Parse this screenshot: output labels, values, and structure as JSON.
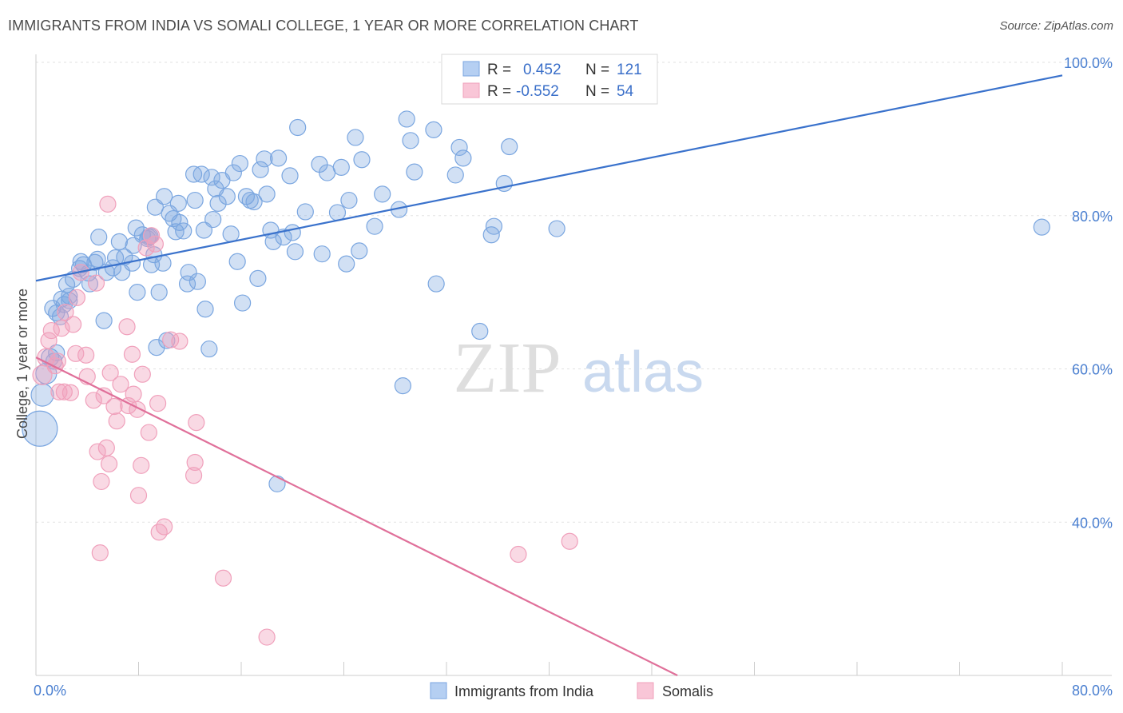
{
  "title": "IMMIGRANTS FROM INDIA VS SOMALI COLLEGE, 1 YEAR OR MORE CORRELATION CHART",
  "source": "Source: ZipAtlas.com",
  "watermark": {
    "zip": "ZIP",
    "atlas": "atlas"
  },
  "legend_box": {
    "rows": [
      {
        "r_label": "R =",
        "r_value": "0.452",
        "n_label": "N =",
        "n_value": "121"
      },
      {
        "r_label": "R =",
        "r_value": "-0.552",
        "n_label": "N =",
        "n_value": "54"
      }
    ]
  },
  "chart_data": {
    "type": "scatter",
    "xlabel": "",
    "ylabel": "College, 1 year or more",
    "xlim": [
      0,
      80
    ],
    "ylim": [
      20,
      100
    ],
    "x_tick_labels": [
      {
        "v": 0,
        "t": "0.0%"
      },
      {
        "v": 80,
        "t": "80.0%"
      }
    ],
    "y_tick_labels": [
      {
        "v": 100,
        "t": "100.0%"
      },
      {
        "v": 80,
        "t": "80.0%"
      },
      {
        "v": 60,
        "t": "60.0%"
      },
      {
        "v": 40,
        "t": "40.0%"
      }
    ],
    "grid": true,
    "legend_position": "bottom",
    "series": [
      {
        "name": "Immigrants from India",
        "color": "#7aa6e0",
        "line_color": "#3a72cc",
        "trend": {
          "x1": 0,
          "y1": 71.5,
          "x2": 80,
          "y2": 98.3
        },
        "points": [
          [
            0.3,
            52.2,
            22
          ],
          [
            0.5,
            56.6,
            14
          ],
          [
            0.8,
            59.4,
            13
          ],
          [
            1.1,
            61.5,
            11
          ],
          [
            1.4,
            61,
            10
          ],
          [
            1.6,
            62.1,
            10
          ],
          [
            1.3,
            67.9,
            10
          ],
          [
            1.6,
            67.3,
            10
          ],
          [
            2.0,
            69.1,
            10
          ],
          [
            2.2,
            68.4,
            10
          ],
          [
            2.6,
            69.5,
            10
          ],
          [
            2.9,
            71.7,
            10
          ],
          [
            2.4,
            71.0,
            10
          ],
          [
            3.4,
            73.1,
            10
          ],
          [
            3.5,
            74.0,
            10
          ],
          [
            3.7,
            73.6,
            10
          ],
          [
            4.2,
            71.1,
            10
          ],
          [
            4.6,
            73.9,
            10
          ],
          [
            4.8,
            74.3,
            10
          ],
          [
            4.9,
            77.2,
            10
          ],
          [
            5.3,
            66.3,
            10
          ],
          [
            5.5,
            72.6,
            10
          ],
          [
            6.0,
            73.2,
            10
          ],
          [
            6.2,
            74.5,
            10
          ],
          [
            6.5,
            76.6,
            10
          ],
          [
            6.7,
            72.6,
            10
          ],
          [
            6.9,
            74.6,
            10
          ],
          [
            7.5,
            73.8,
            10
          ],
          [
            7.6,
            76.1,
            10
          ],
          [
            7.8,
            78.4,
            10
          ],
          [
            7.9,
            70.0,
            10
          ],
          [
            8.3,
            77.5,
            10
          ],
          [
            8.7,
            77.0,
            10
          ],
          [
            8.9,
            77.3,
            10
          ],
          [
            8.8,
            77.2,
            10
          ],
          [
            9.0,
            73.6,
            10
          ],
          [
            9.3,
            81.1,
            10
          ],
          [
            9.4,
            62.8,
            10
          ],
          [
            9.6,
            70.0,
            10
          ],
          [
            9.9,
            73.8,
            10
          ],
          [
            10.0,
            82.5,
            10
          ],
          [
            10.2,
            63.7,
            10
          ],
          [
            10.4,
            80.3,
            10
          ],
          [
            10.7,
            79.6,
            10
          ],
          [
            10.9,
            77.9,
            10
          ],
          [
            11.1,
            81.6,
            10
          ],
          [
            11.2,
            79.1,
            10
          ],
          [
            11.5,
            78.0,
            10
          ],
          [
            11.8,
            71.1,
            10
          ],
          [
            11.9,
            72.6,
            10
          ],
          [
            12.3,
            85.4,
            10
          ],
          [
            12.4,
            82.0,
            10
          ],
          [
            12.6,
            71.4,
            10
          ],
          [
            12.9,
            85.4,
            10
          ],
          [
            13.1,
            78.1,
            10
          ],
          [
            13.2,
            67.8,
            10
          ],
          [
            13.5,
            62.6,
            10
          ],
          [
            13.7,
            85.0,
            10
          ],
          [
            13.8,
            79.5,
            10
          ],
          [
            14.0,
            83.5,
            10
          ],
          [
            14.2,
            81.6,
            10
          ],
          [
            14.5,
            84.6,
            10
          ],
          [
            14.9,
            82.5,
            10
          ],
          [
            15.2,
            77.6,
            10
          ],
          [
            15.4,
            85.6,
            10
          ],
          [
            15.7,
            74.0,
            10
          ],
          [
            15.9,
            86.8,
            10
          ],
          [
            16.1,
            68.6,
            10
          ],
          [
            16.4,
            82.5,
            10
          ],
          [
            16.7,
            82.0,
            10
          ],
          [
            17.0,
            81.8,
            10
          ],
          [
            17.3,
            71.8,
            10
          ],
          [
            17.5,
            86.0,
            10
          ],
          [
            17.8,
            87.4,
            10
          ],
          [
            18.0,
            82.8,
            10
          ],
          [
            18.3,
            78.1,
            10
          ],
          [
            18.5,
            76.6,
            10
          ],
          [
            18.9,
            87.5,
            10
          ],
          [
            19.3,
            77.2,
            10
          ],
          [
            19.8,
            85.2,
            10
          ],
          [
            20.0,
            77.8,
            10
          ],
          [
            20.2,
            75.3,
            10
          ],
          [
            20.4,
            91.5,
            10
          ],
          [
            21.0,
            80.5,
            10
          ],
          [
            22.1,
            86.7,
            10
          ],
          [
            22.3,
            75.0,
            10
          ],
          [
            22.7,
            85.6,
            10
          ],
          [
            23.5,
            80.4,
            10
          ],
          [
            23.8,
            86.3,
            10
          ],
          [
            24.2,
            73.7,
            10
          ],
          [
            24.4,
            82.0,
            10
          ],
          [
            24.9,
            90.2,
            10
          ],
          [
            25.2,
            75.4,
            10
          ],
          [
            25.4,
            87.3,
            10
          ],
          [
            26.4,
            78.6,
            10
          ],
          [
            27.0,
            82.8,
            10
          ],
          [
            28.3,
            80.8,
            10
          ],
          [
            28.9,
            92.6,
            10
          ],
          [
            29.2,
            89.8,
            10
          ],
          [
            29.5,
            85.7,
            10
          ],
          [
            31.0,
            91.2,
            10
          ],
          [
            31.2,
            71.1,
            10
          ],
          [
            33.0,
            88.9,
            10
          ],
          [
            33.3,
            87.5,
            10
          ],
          [
            32.7,
            85.3,
            10
          ],
          [
            34.6,
            64.9,
            10
          ],
          [
            35.5,
            77.5,
            10
          ],
          [
            35.7,
            78.6,
            10
          ],
          [
            36.5,
            84.2,
            10
          ],
          [
            36.9,
            89.0,
            10
          ],
          [
            40.6,
            78.3,
            10
          ],
          [
            78.4,
            78.5,
            10
          ],
          [
            28.6,
            57.8,
            10
          ],
          [
            18.8,
            45.0,
            10
          ],
          [
            2.6,
            68.9,
            10
          ],
          [
            1.9,
            66.8,
            10
          ],
          [
            4.1,
            72.5,
            10
          ],
          [
            9.2,
            74.9,
            10
          ]
        ]
      },
      {
        "name": "Somalis",
        "color": "#f0a0bb",
        "line_color": "#e0709a",
        "trend": {
          "x1": 0,
          "y1": 61.5,
          "x2": 50.0,
          "y2": 20.0
        },
        "points": [
          [
            0.5,
            59.2,
            12
          ],
          [
            0.8,
            61.5,
            11
          ],
          [
            1.0,
            63.7,
            10
          ],
          [
            1.2,
            65.0,
            10
          ],
          [
            1.5,
            60.4,
            10
          ],
          [
            1.7,
            61.0,
            10
          ],
          [
            1.8,
            57.0,
            10
          ],
          [
            2.0,
            65.3,
            10
          ],
          [
            2.2,
            57.0,
            10
          ],
          [
            2.3,
            67.4,
            10
          ],
          [
            2.7,
            56.9,
            10
          ],
          [
            2.9,
            65.8,
            10
          ],
          [
            3.1,
            62.0,
            10
          ],
          [
            3.2,
            69.3,
            10
          ],
          [
            3.5,
            72.6,
            10
          ],
          [
            3.9,
            61.8,
            10
          ],
          [
            4.0,
            59.0,
            10
          ],
          [
            4.5,
            55.9,
            10
          ],
          [
            4.7,
            71.2,
            10
          ],
          [
            4.8,
            49.2,
            10
          ],
          [
            5.1,
            45.3,
            10
          ],
          [
            5.3,
            56.5,
            10
          ],
          [
            5.5,
            49.7,
            10
          ],
          [
            5.6,
            81.5,
            10
          ],
          [
            5.7,
            47.6,
            10
          ],
          [
            5.8,
            59.5,
            10
          ],
          [
            6.1,
            55.1,
            10
          ],
          [
            6.3,
            53.2,
            10
          ],
          [
            6.6,
            58.0,
            10
          ],
          [
            7.1,
            65.5,
            10
          ],
          [
            7.2,
            55.2,
            10
          ],
          [
            7.5,
            61.9,
            10
          ],
          [
            7.6,
            56.7,
            10
          ],
          [
            7.9,
            54.7,
            10
          ],
          [
            8.0,
            43.5,
            10
          ],
          [
            8.2,
            47.4,
            10
          ],
          [
            8.3,
            59.3,
            10
          ],
          [
            8.6,
            75.8,
            10
          ],
          [
            8.8,
            51.7,
            10
          ],
          [
            9.0,
            77.4,
            10
          ],
          [
            9.3,
            76.3,
            10
          ],
          [
            9.5,
            55.5,
            10
          ],
          [
            9.6,
            38.7,
            10
          ],
          [
            10.0,
            39.4,
            10
          ],
          [
            10.5,
            63.8,
            10
          ],
          [
            11.2,
            63.6,
            10
          ],
          [
            12.3,
            46.1,
            10
          ],
          [
            12.4,
            47.8,
            10
          ],
          [
            12.5,
            53.0,
            10
          ],
          [
            14.6,
            32.7,
            10
          ],
          [
            18.0,
            25.0,
            10
          ],
          [
            5.0,
            36.0,
            10
          ],
          [
            37.6,
            35.8,
            10
          ],
          [
            41.6,
            37.5,
            10
          ]
        ]
      }
    ]
  }
}
